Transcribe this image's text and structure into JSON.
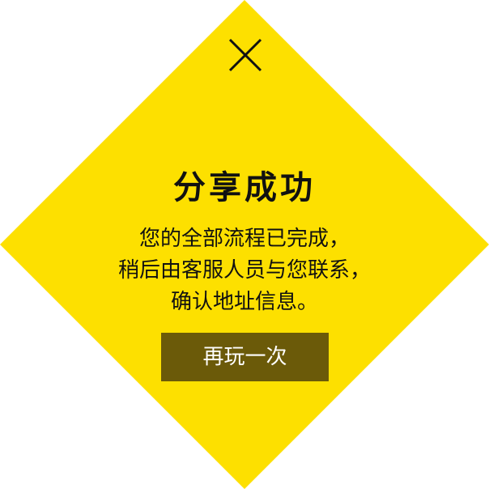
{
  "colors": {
    "panel_yellow": "#fde000",
    "text": "#111111",
    "button_bg": "#6b5a09",
    "button_text": "#ffffff"
  },
  "dialog": {
    "close_icon": "close-x-icon",
    "title": "分享成功",
    "message_lines": [
      "您的全部流程已完成，",
      "稍后由客服人员与您联系，",
      "确认地址信息。"
    ],
    "replay_label": "再玩一次"
  }
}
